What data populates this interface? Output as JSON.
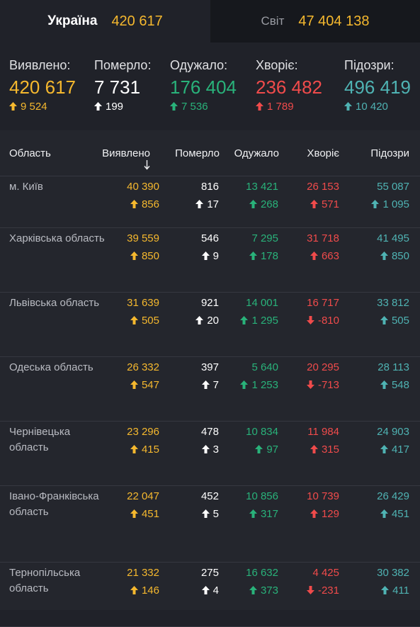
{
  "tabs": {
    "ukraine": {
      "label": "Україна",
      "value": "420 617"
    },
    "world": {
      "label": "Світ",
      "value": "47 404 138"
    }
  },
  "colors": {
    "yellow": "#f5b82e",
    "white": "#ffffff",
    "green": "#29b27a",
    "red": "#f04b4b",
    "teal": "#4fb3b3"
  },
  "summary": [
    {
      "label": "Виявлено:",
      "value": "420 617",
      "delta": "9 524",
      "dir": "up",
      "color": "yellow"
    },
    {
      "label": "Померло:",
      "value": "7 731",
      "delta": "199",
      "dir": "up",
      "color": "white"
    },
    {
      "label": "Одужало:",
      "value": "176 404",
      "delta": "7 536",
      "dir": "up",
      "color": "green"
    },
    {
      "label": "Хворіє:",
      "value": "236 482",
      "delta": "1 789",
      "dir": "up",
      "color": "red"
    },
    {
      "label": "Підозри:",
      "value": "496 419",
      "delta": "10 420",
      "dir": "up",
      "color": "teal"
    }
  ],
  "table": {
    "headers": {
      "region": "Область",
      "detected": "Виявлено",
      "sort_icon": "arrow-down-icon",
      "deaths": "Померло",
      "recovered": "Одужало",
      "sick": "Хворіє",
      "suspected": "Підозри"
    },
    "rows": [
      {
        "region": "м. Київ",
        "detected": "40 390",
        "detected_d": "856",
        "detected_dir": "up",
        "deaths": "816",
        "deaths_d": "17",
        "deaths_dir": "up",
        "recovered": "13 421",
        "recovered_d": "268",
        "recovered_dir": "up",
        "sick": "26 153",
        "sick_d": "571",
        "sick_dir": "up",
        "suspected": "55 087",
        "suspected_d": "1 095",
        "suspected_dir": "up"
      },
      {
        "region": "Харківська область",
        "detected": "39 559",
        "detected_d": "850",
        "detected_dir": "up",
        "deaths": "546",
        "deaths_d": "9",
        "deaths_dir": "up",
        "recovered": "7 295",
        "recovered_d": "178",
        "recovered_dir": "up",
        "sick": "31 718",
        "sick_d": "663",
        "sick_dir": "up",
        "suspected": "41 495",
        "suspected_d": "850",
        "suspected_dir": "up"
      },
      {
        "region": "Львівська область",
        "detected": "31 639",
        "detected_d": "505",
        "detected_dir": "up",
        "deaths": "921",
        "deaths_d": "20",
        "deaths_dir": "up",
        "recovered": "14 001",
        "recovered_d": "1 295",
        "recovered_dir": "up",
        "sick": "16 717",
        "sick_d": "-810",
        "sick_dir": "down",
        "suspected": "33 812",
        "suspected_d": "505",
        "suspected_dir": "up"
      },
      {
        "region": "Одеська область",
        "detected": "26 332",
        "detected_d": "547",
        "detected_dir": "up",
        "deaths": "397",
        "deaths_d": "7",
        "deaths_dir": "up",
        "recovered": "5 640",
        "recovered_d": "1 253",
        "recovered_dir": "up",
        "sick": "20 295",
        "sick_d": "-713",
        "sick_dir": "down",
        "suspected": "28 113",
        "suspected_d": "548",
        "suspected_dir": "up"
      },
      {
        "region": "Чернівецька область",
        "detected": "23 296",
        "detected_d": "415",
        "detected_dir": "up",
        "deaths": "478",
        "deaths_d": "3",
        "deaths_dir": "up",
        "recovered": "10 834",
        "recovered_d": "97",
        "recovered_dir": "up",
        "sick": "11 984",
        "sick_d": "315",
        "sick_dir": "up",
        "suspected": "24 903",
        "suspected_d": "417",
        "suspected_dir": "up"
      },
      {
        "region": "Івано-Франківська область",
        "detected": "22 047",
        "detected_d": "451",
        "detected_dir": "up",
        "deaths": "452",
        "deaths_d": "5",
        "deaths_dir": "up",
        "recovered": "10 856",
        "recovered_d": "317",
        "recovered_dir": "up",
        "sick": "10 739",
        "sick_d": "129",
        "sick_dir": "up",
        "suspected": "26 429",
        "suspected_d": "451",
        "suspected_dir": "up"
      },
      {
        "region": "Тернопільська область",
        "detected": "21 332",
        "detected_d": "146",
        "detected_dir": "up",
        "deaths": "275",
        "deaths_d": "4",
        "deaths_dir": "up",
        "recovered": "16 632",
        "recovered_d": "373",
        "recovered_dir": "up",
        "sick": "4 425",
        "sick_d": "-231",
        "sick_dir": "down",
        "suspected": "30 382",
        "suspected_d": "411",
        "suspected_dir": "up"
      }
    ]
  }
}
